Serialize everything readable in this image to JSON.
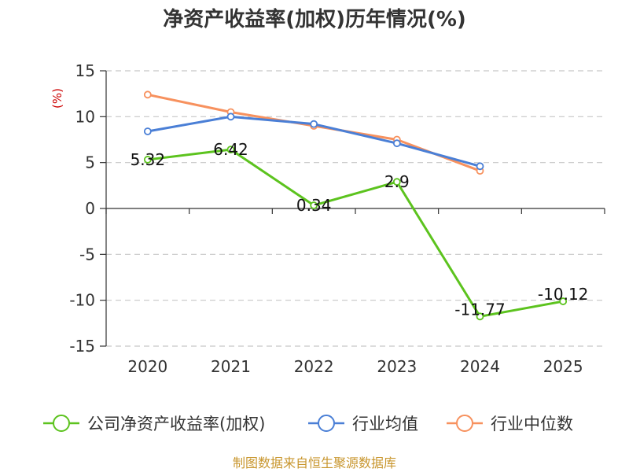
{
  "chart_data": {
    "type": "line",
    "title": "净资产收益率(加权)历年情况(%)",
    "ylabel": "(%)",
    "xlabel": "",
    "categories": [
      "2020",
      "2021",
      "2022",
      "2023",
      "2024",
      "2025"
    ],
    "ylim": [
      -15,
      15
    ],
    "yticks": [
      15,
      10,
      5,
      0,
      -5,
      -10,
      -15
    ],
    "grid": true,
    "series": [
      {
        "name": "公司净资产收益率(加权)",
        "color": "#5cc31e",
        "values": [
          5.32,
          6.42,
          0.34,
          2.9,
          -11.77,
          -10.12
        ],
        "labels": [
          "5.32",
          "6.42",
          "0.34",
          "2.9",
          "-11.77",
          "-10.12"
        ]
      },
      {
        "name": "行业均值",
        "color": "#4a7fd6",
        "values": [
          8.4,
          10.0,
          9.2,
          7.1,
          4.6,
          null
        ]
      },
      {
        "name": "行业中位数",
        "color": "#f7915e",
        "values": [
          12.4,
          10.5,
          9.0,
          7.5,
          4.1,
          null
        ]
      }
    ],
    "legend_position": "bottom",
    "source": "制图数据来自恒生聚源数据库"
  }
}
